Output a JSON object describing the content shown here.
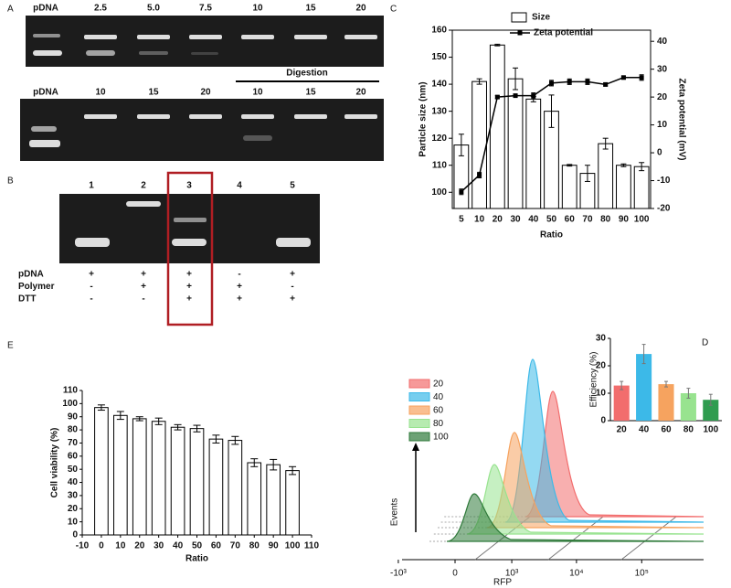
{
  "panel_labels": [
    "A",
    "B",
    "C",
    "D",
    "E"
  ],
  "gel_a": {
    "row1": [
      "pDNA",
      "2.5",
      "5.0",
      "7.5",
      "10",
      "15",
      "20"
    ],
    "row2": [
      "pDNA",
      "10",
      "15",
      "20",
      "10",
      "15",
      "20"
    ],
    "digestion": "Digestion"
  },
  "gel_b": {
    "lanes": [
      "1",
      "2",
      "3",
      "4",
      "5"
    ],
    "rows": [
      {
        "label": "pDNA",
        "signs": [
          "+",
          "+",
          "+",
          "-",
          "+"
        ]
      },
      {
        "label": "Polymer",
        "signs": [
          "-",
          "+",
          "+",
          "+",
          "-"
        ]
      },
      {
        "label": "DTT",
        "signs": [
          "-",
          "-",
          "+",
          "+",
          "+"
        ]
      }
    ]
  },
  "chart_data": [
    {
      "type": "bar-line",
      "xlabel": "Ratio",
      "ylabel": "Particle size (nm)",
      "y2label": "Zeta potential (mV)",
      "categories": [
        5,
        10,
        20,
        30,
        40,
        50,
        60,
        70,
        80,
        90,
        100
      ],
      "series": [
        {
          "name": "Size",
          "color": "#ffffff",
          "values": [
            117.5,
            141,
            154.5,
            142,
            134.5,
            130,
            110,
            107,
            118,
            110,
            109.5
          ],
          "errors": [
            4,
            1,
            0.3,
            4,
            1,
            6,
            0.3,
            3,
            2,
            0.5,
            1.5
          ]
        },
        {
          "name": "Zeta potential",
          "color": "#000000",
          "axis": "y2",
          "values": [
            -14,
            -8,
            20,
            20.5,
            20.5,
            25,
            25.5,
            25.5,
            24.5,
            27,
            27
          ],
          "errors": [
            1,
            1,
            0.5,
            0.5,
            1,
            1,
            1,
            1,
            0.5,
            0.5,
            1
          ]
        }
      ],
      "ylim": [
        94,
        160
      ],
      "yticks": [
        100,
        110,
        120,
        130,
        140,
        150,
        160
      ],
      "y2lim": [
        -20,
        44
      ],
      "y2ticks": [
        -20,
        -10,
        0,
        10,
        20,
        30,
        40
      ]
    },
    {
      "type": "bar",
      "xlabel": "Ratio",
      "ylabel": "Cell viability (%)",
      "color": "#ffffff",
      "x": [
        0,
        10,
        20,
        30,
        40,
        50,
        60,
        70,
        80,
        90,
        100
      ],
      "values": [
        97,
        91,
        88.5,
        86.5,
        82,
        81,
        73,
        72,
        55,
        53.5,
        49
      ],
      "errors": [
        2,
        3,
        1.5,
        2.5,
        2,
        2.5,
        3,
        3,
        3,
        4,
        3
      ],
      "xlim": [
        -10,
        110
      ],
      "xticks": [
        -10,
        0,
        10,
        20,
        30,
        40,
        50,
        60,
        70,
        80,
        90,
        100,
        110
      ],
      "ylim": [
        0,
        110
      ],
      "yticks": [
        0,
        10,
        20,
        30,
        40,
        50,
        60,
        70,
        80,
        90,
        100,
        110
      ]
    },
    {
      "type": "bar",
      "ylabel": "Efficiency (%)",
      "categories": [
        "20",
        "40",
        "60",
        "80",
        "100"
      ],
      "values": [
        12.8,
        24.3,
        13.3,
        10,
        7.6
      ],
      "errors": [
        1.5,
        3.5,
        1,
        1.8,
        2
      ],
      "colors": [
        "#f26d6d",
        "#3cb9e8",
        "#f6a35f",
        "#98e38f",
        "#2f9c4f"
      ],
      "ylim": [
        0,
        30
      ],
      "yticks": [
        0,
        10,
        20,
        30
      ]
    },
    {
      "type": "flow-histogram",
      "xlabel": "RFP",
      "ylabel": "Events",
      "xticks": [
        {
          "value": -1000,
          "label": "-10³"
        },
        0,
        {
          "value": 1000,
          "label": "10³"
        },
        {
          "value": 10000,
          "label": "10⁴"
        },
        {
          "value": 100000,
          "label": "10⁵"
        }
      ],
      "series": [
        {
          "name": "20",
          "color": "#f26d6d"
        },
        {
          "name": "40",
          "color": "#3cb9e8"
        },
        {
          "name": "60",
          "color": "#f6a35f"
        },
        {
          "name": "80",
          "color": "#98e38f"
        },
        {
          "name": "100",
          "color": "#2f7a3a"
        }
      ]
    }
  ]
}
